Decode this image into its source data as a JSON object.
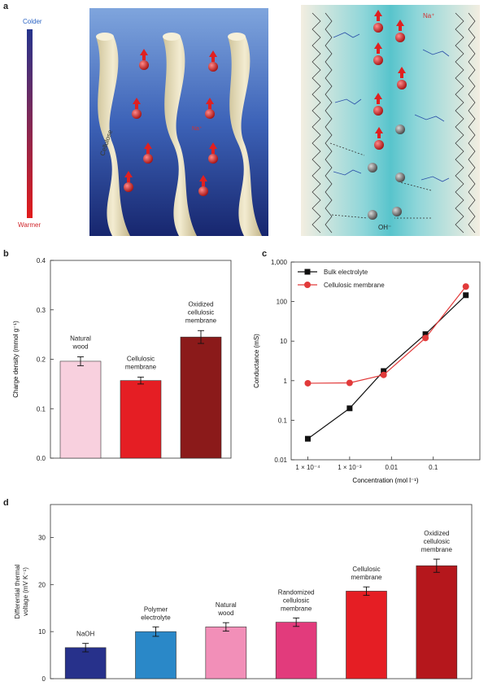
{
  "panel_a": {
    "letter": "a",
    "legend_top": "Colder",
    "legend_bottom": "Warmer",
    "left_fiber_label": "Cellulose",
    "left_ion_label": "Na⁺",
    "right_ion_top": "Na⁺",
    "right_ion_bottom": "OH⁻",
    "colors": {
      "cold": "#2a3a8c",
      "warm": "#e21b1b",
      "fiber": "#e7dcb7",
      "ion": "#d42525",
      "anion": "#777777"
    }
  },
  "chart_data": [
    {
      "id": "b",
      "letter": "b",
      "type": "bar",
      "categories": [
        "Natural\nwood",
        "Cellulosic\nmembrane",
        "Oxidized\ncellulosic\nmembrane"
      ],
      "values": [
        0.196,
        0.157,
        0.245
      ],
      "errors": [
        0.009,
        0.007,
        0.013
      ],
      "colors": [
        "#f8d0de",
        "#e51e24",
        "#8b1a1a"
      ],
      "ylabel": "Charge density (mmol g⁻¹)",
      "ylim": [
        0.0,
        0.4
      ],
      "yticks": [
        "0.0",
        "0.1",
        "0.2",
        "0.3",
        "0.4"
      ]
    },
    {
      "id": "c",
      "letter": "c",
      "type": "line",
      "x": [
        0.0001,
        0.001,
        0.0065,
        0.065,
        0.6
      ],
      "series": [
        {
          "name": "Bulk electrolyte",
          "values": [
            0.034,
            0.2,
            1.75,
            15,
            145
          ],
          "color": "#111111",
          "marker": "square"
        },
        {
          "name": "Cellulosic membrane",
          "values": [
            0.86,
            0.88,
            1.4,
            12,
            240
          ],
          "color": "#e23a3a",
          "marker": "circle"
        }
      ],
      "xlabel": "Concentration (mol l⁻¹)",
      "ylabel": "Conductance (mS)",
      "xscale": "log",
      "yscale": "log",
      "xlim": [
        4e-05,
        1.3
      ],
      "ylim": [
        0.01,
        1000
      ],
      "xtick_values": [
        0.0001,
        0.001,
        0.01,
        0.1
      ],
      "xticks": [
        "1 × 10⁻⁴",
        "1 × 10⁻³",
        "0.01",
        "0.1"
      ],
      "ytick_values": [
        0.01,
        0.1,
        1,
        10,
        100,
        1000
      ],
      "yticks": [
        "0.01",
        "0.1",
        "1",
        "10",
        "100",
        "1,000"
      ],
      "legend_position": "top-left"
    },
    {
      "id": "d",
      "letter": "d",
      "type": "bar",
      "categories": [
        "NaOH",
        "Polymer\nelectrolyte",
        "Natural\nwood",
        "Randomized\ncellulosic\nmembrane",
        "Cellulosic\nmembrane",
        "Oxidized\ncellulosic\nmembrane"
      ],
      "values": [
        6.6,
        10.0,
        11.0,
        12.0,
        18.6,
        24.0
      ],
      "errors": [
        0.9,
        1.0,
        0.9,
        0.9,
        0.9,
        1.4
      ],
      "colors": [
        "#27318b",
        "#2a88c8",
        "#f28fb8",
        "#e23b7c",
        "#e51e24",
        "#b5171c"
      ],
      "ylabel": "Differential thermal\nvoltage (mV K⁻¹)",
      "ylim": [
        0,
        37
      ],
      "ytick_values": [
        0,
        10,
        20,
        30
      ],
      "yticks": [
        "0",
        "10",
        "20",
        "30"
      ]
    }
  ]
}
